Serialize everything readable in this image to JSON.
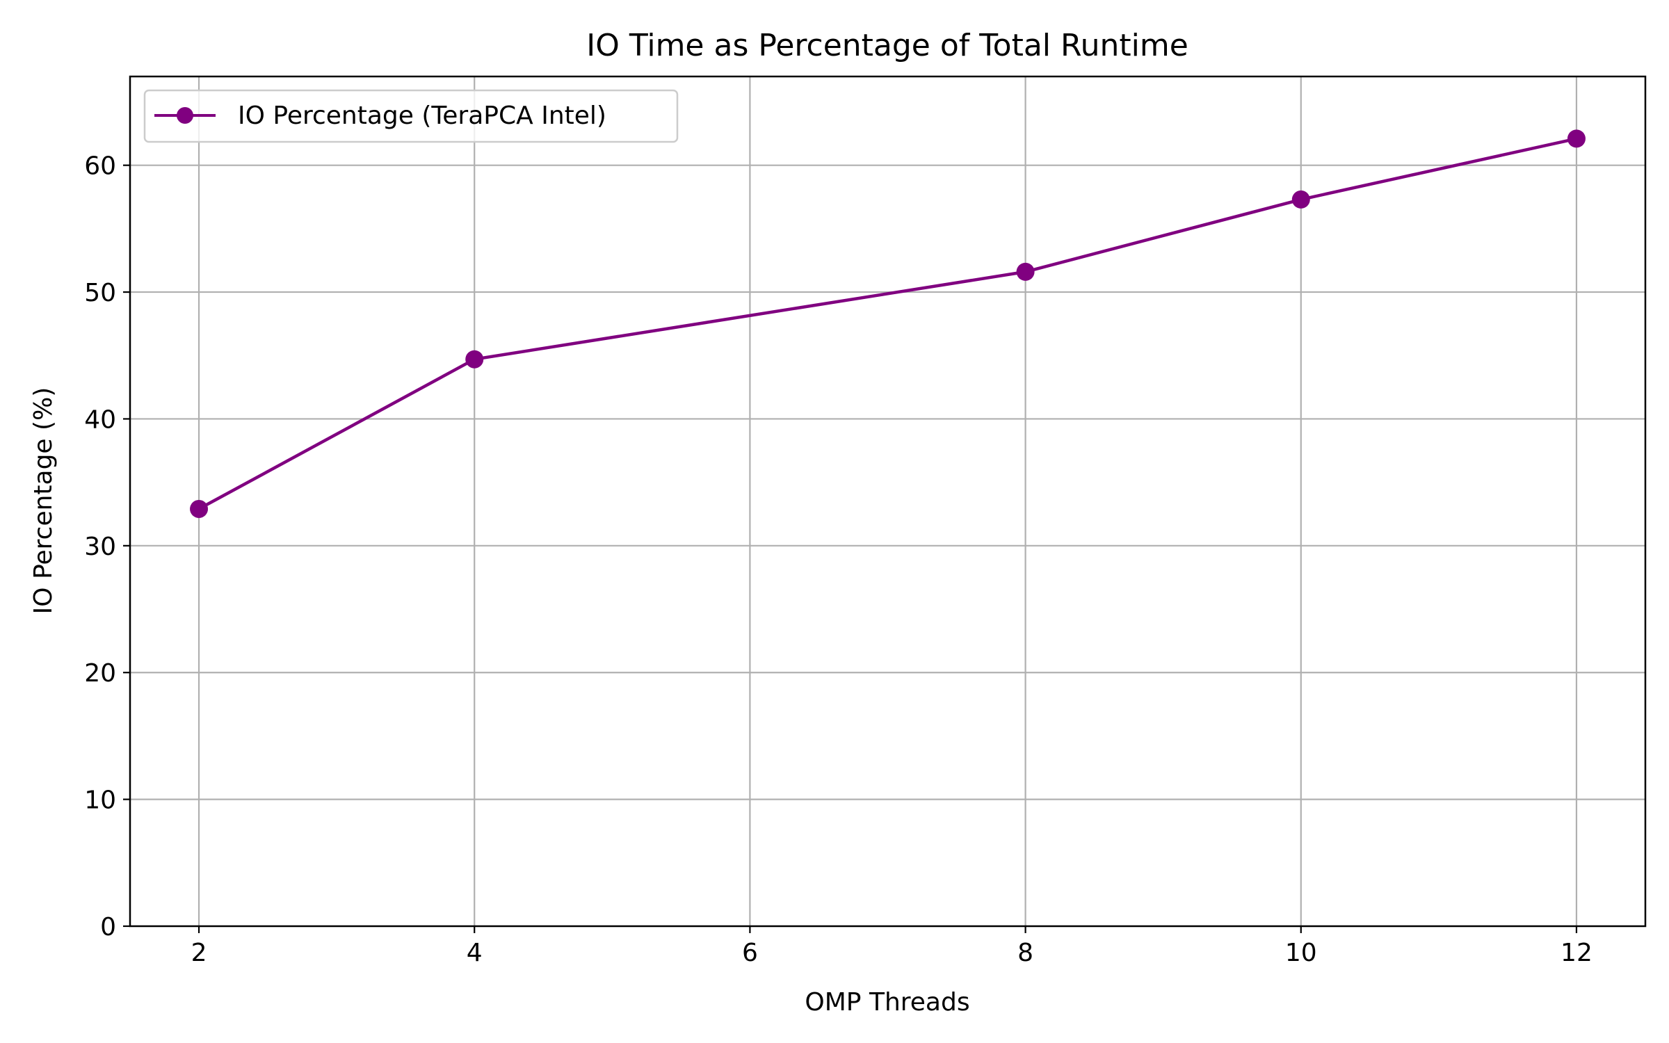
{
  "chart_data": {
    "type": "line",
    "title": "IO Time as Percentage of Total Runtime",
    "xlabel": "OMP Threads",
    "ylabel": "IO Percentage (%)",
    "xlim": [
      1.5,
      12.5
    ],
    "ylim": [
      0,
      67
    ],
    "x_ticks": [
      2,
      4,
      6,
      8,
      10,
      12
    ],
    "y_ticks": [
      0,
      10,
      20,
      30,
      40,
      50,
      60
    ],
    "grid": true,
    "legend_position": "top-left",
    "series": [
      {
        "name": "IO Percentage (TeraPCA Intel)",
        "color": "#800080",
        "marker": "circle",
        "x": [
          2,
          4,
          8,
          10,
          12
        ],
        "values": [
          32.9,
          44.7,
          51.6,
          57.3,
          62.1
        ]
      }
    ]
  }
}
